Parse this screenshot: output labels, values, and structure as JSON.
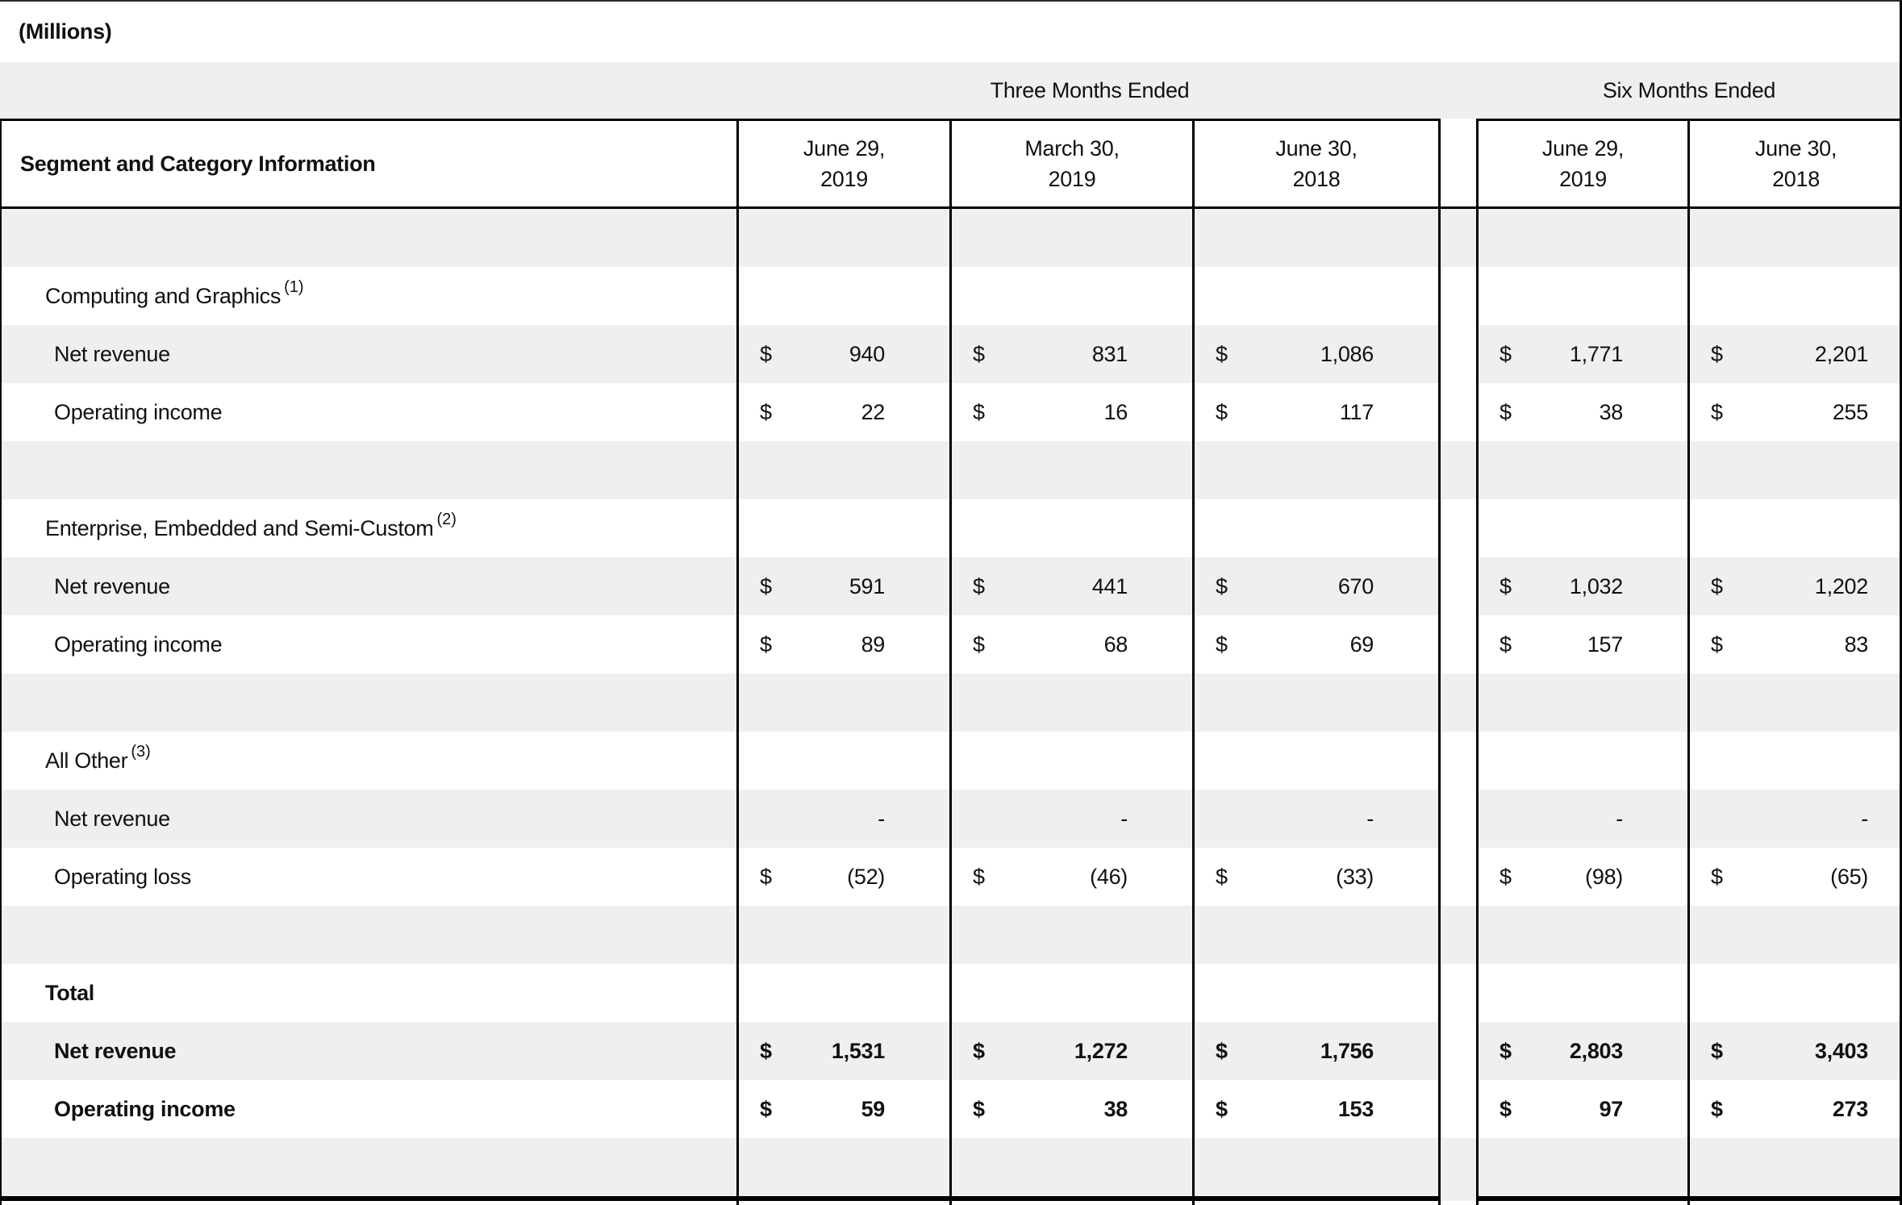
{
  "page": {
    "units_label": "(Millions)",
    "colors": {
      "stripe": "#efefef",
      "border": "#000000",
      "text": "#111111"
    }
  },
  "table": {
    "title": "Segment and Category Information",
    "col_groups": [
      {
        "label": "Three Months Ended"
      },
      {
        "label": "Six Months Ended"
      }
    ],
    "columns": [
      {
        "line1": "June 29,",
        "line2": "2019"
      },
      {
        "line1": "March 30,",
        "line2": "2019"
      },
      {
        "line1": "June 30,",
        "line2": "2018"
      },
      {
        "line1": "June 29,",
        "line2": "2019"
      },
      {
        "line1": "June 30,",
        "line2": "2018"
      }
    ],
    "sections": [
      {
        "name": "Computing and Graphics",
        "footnote": "(1)",
        "bold": false,
        "rows": [
          {
            "label": "Net revenue",
            "currency": "$",
            "values": [
              "940",
              "831",
              "1,086",
              "1,771",
              "2,201"
            ]
          },
          {
            "label": "Operating income",
            "currency": "$",
            "values": [
              "22",
              "16",
              "117",
              "38",
              "255"
            ]
          }
        ]
      },
      {
        "name": "Enterprise, Embedded and Semi-Custom",
        "footnote": "(2)",
        "bold": false,
        "rows": [
          {
            "label": "Net revenue",
            "currency": "$",
            "values": [
              "591",
              "441",
              "670",
              "1,032",
              "1,202"
            ]
          },
          {
            "label": "Operating income",
            "currency": "$",
            "values": [
              "89",
              "68",
              "69",
              "157",
              "83"
            ]
          }
        ]
      },
      {
        "name": "All Other",
        "footnote": "(3)",
        "bold": false,
        "rows": [
          {
            "label": "Net revenue",
            "currency": "",
            "values": [
              "-",
              "-",
              "-",
              "-",
              "-"
            ]
          },
          {
            "label": "Operating loss",
            "currency": "$",
            "values": [
              "(52)",
              "(46)",
              "(33)",
              "(98)",
              "(65)"
            ]
          }
        ]
      },
      {
        "name": "Total",
        "footnote": "",
        "bold": true,
        "rows": [
          {
            "label": "Net revenue",
            "currency": "$",
            "values": [
              "1,531",
              "1,272",
              "1,756",
              "2,803",
              "3,403"
            ]
          },
          {
            "label": "Operating income",
            "currency": "$",
            "values": [
              "59",
              "38",
              "153",
              "97",
              "273"
            ]
          }
        ]
      }
    ]
  }
}
